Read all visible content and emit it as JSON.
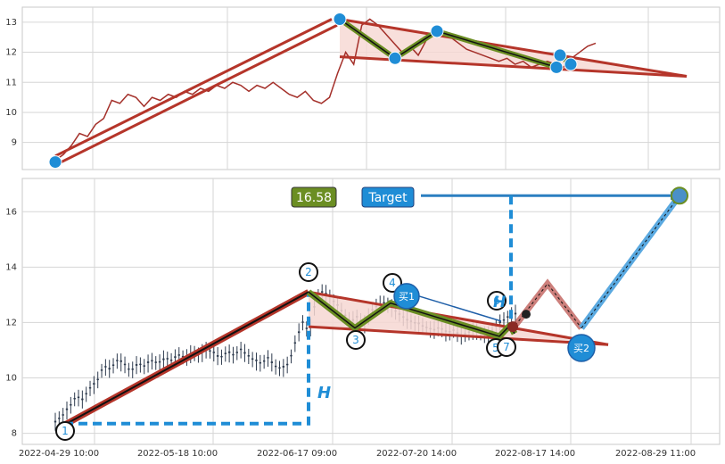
{
  "chart_data": [
    {
      "type": "line",
      "panel": "top",
      "description_values": "close price line with pattern overlay",
      "ylim": [
        8.1,
        13.5
      ],
      "yticks": [
        9,
        10,
        11,
        12,
        13
      ],
      "grid": true,
      "price_path": [
        8.4,
        8.6,
        8.9,
        9.3,
        9.2,
        9.6,
        9.8,
        10.4,
        10.3,
        10.6,
        10.5,
        10.2,
        10.5,
        10.4,
        10.6,
        10.5,
        10.7,
        10.6,
        10.8,
        10.7,
        10.9,
        10.8,
        11.0,
        10.9,
        10.7,
        10.9,
        10.8,
        11.0,
        10.8,
        10.6,
        10.5,
        10.7,
        10.4,
        10.3,
        10.5,
        11.3,
        12.0,
        11.6,
        12.9,
        13.1,
        12.9,
        12.6,
        12.3,
        12.0,
        12.2,
        11.9,
        12.4,
        12.6,
        12.7,
        12.5,
        12.3,
        12.1,
        12.0,
        11.9,
        11.8,
        11.7,
        11.8,
        11.6,
        11.7,
        11.5,
        11.6,
        11.7,
        11.6,
        11.5,
        11.8,
        12.0,
        12.2,
        12.3
      ],
      "pattern_points": [
        {
          "label": "1",
          "value": 8.35
        },
        {
          "label": "2",
          "value": 13.1
        },
        {
          "label": "3",
          "value": 11.8
        },
        {
          "label": "4",
          "value": 12.7
        },
        {
          "label": "5",
          "value": 11.5
        },
        {
          "label": "6",
          "value": 11.9
        },
        {
          "label": "7",
          "value": 11.6
        }
      ]
    },
    {
      "type": "candlestick",
      "panel": "bottom",
      "ylim": [
        7.6,
        17.2
      ],
      "yticks": [
        8,
        10,
        12,
        14,
        16
      ],
      "grid": true,
      "xtick_labels": [
        "2022-04-29 10:00",
        "2022-05-18 10:00",
        "2022-06-17 09:00",
        "2022-07-20 14:00",
        "2022-08-17 14:00",
        "2022-08-29 11:00"
      ],
      "pattern_points": [
        {
          "label": "1",
          "value": 8.35
        },
        {
          "label": "2",
          "value": 13.1
        },
        {
          "label": "3",
          "value": 11.8
        },
        {
          "label": "4",
          "value": 12.7
        },
        {
          "label": "5",
          "value": 11.5
        },
        {
          "label": "6",
          "value": 11.9
        },
        {
          "label": "7",
          "value": 11.6
        }
      ],
      "annotations": {
        "price_box": "16.58",
        "target_box": "Target",
        "buy1": "买1",
        "buy2": "买2",
        "height_label": "H",
        "height_label_small": "H"
      },
      "target_value": 16.58
    }
  ],
  "colors": {
    "trend_red": "#b5352a",
    "fill_pink": "#f6d7d2",
    "olive": "#6b8e23",
    "blue": "#1f8dd6",
    "dark_blue": "#1f5fa8",
    "target_box_bg": "#1f8dd6",
    "price_box_bg": "#6b8e23"
  }
}
